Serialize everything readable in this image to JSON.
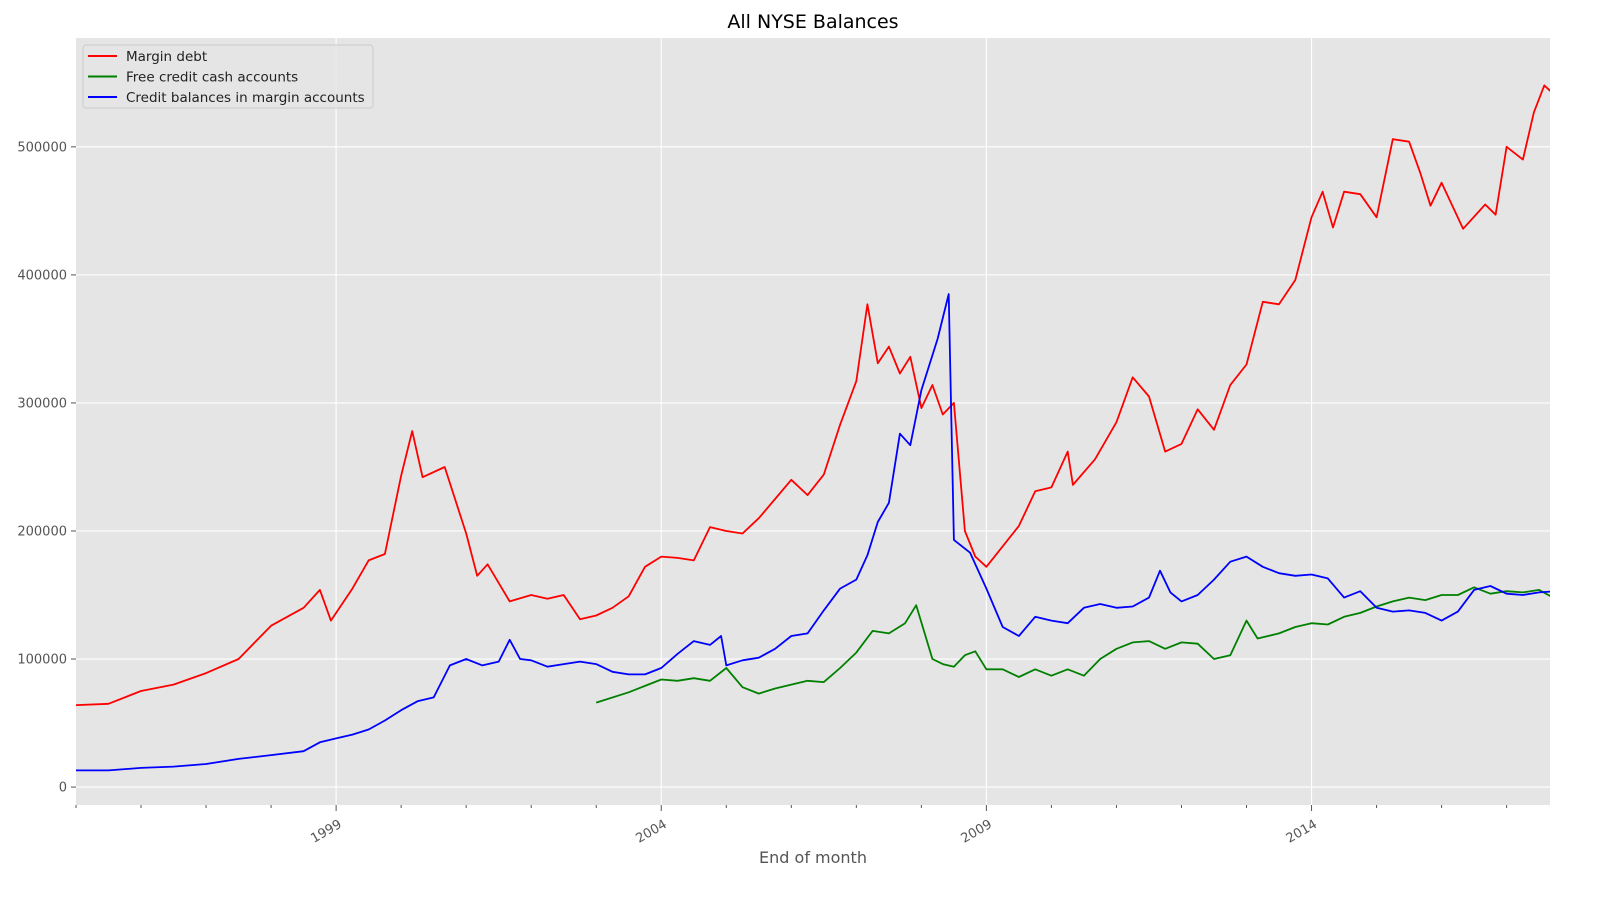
{
  "chart_data": {
    "type": "line",
    "title": "All NYSE Balances",
    "xlabel": "End of month",
    "ylabel": "",
    "xlim": [
      1995.0,
      2017.667
    ],
    "ylim": [
      -14000,
      585000
    ],
    "x_ticks": [
      1999,
      2004,
      2009,
      2014
    ],
    "x_tick_labels": [
      "1999",
      "2004",
      "2009",
      "2014"
    ],
    "y_ticks": [
      0,
      100000,
      200000,
      300000,
      400000,
      500000
    ],
    "y_tick_labels": [
      "0",
      "100000",
      "200000",
      "300000",
      "400000",
      "500000"
    ],
    "grid": true,
    "legend_position": "top-left",
    "series": [
      {
        "name": "Margin debt",
        "color": "#ff0000",
        "points": [
          [
            1995.0,
            64000
          ],
          [
            1995.5,
            65000
          ],
          [
            1996.0,
            75000
          ],
          [
            1996.5,
            80000
          ],
          [
            1997.0,
            89000
          ],
          [
            1997.5,
            100000
          ],
          [
            1998.0,
            126000
          ],
          [
            1998.5,
            140000
          ],
          [
            1998.75,
            154000
          ],
          [
            1998.92,
            130000
          ],
          [
            1999.25,
            155000
          ],
          [
            1999.5,
            177000
          ],
          [
            1999.75,
            182000
          ],
          [
            2000.0,
            243000
          ],
          [
            2000.17,
            278000
          ],
          [
            2000.33,
            242000
          ],
          [
            2000.67,
            250000
          ],
          [
            2001.0,
            198000
          ],
          [
            2001.17,
            165000
          ],
          [
            2001.33,
            174000
          ],
          [
            2001.67,
            145000
          ],
          [
            2002.0,
            150000
          ],
          [
            2002.25,
            147000
          ],
          [
            2002.5,
            150000
          ],
          [
            2002.75,
            131000
          ],
          [
            2003.0,
            134000
          ],
          [
            2003.25,
            140000
          ],
          [
            2003.5,
            149000
          ],
          [
            2003.75,
            172000
          ],
          [
            2004.0,
            180000
          ],
          [
            2004.25,
            179000
          ],
          [
            2004.5,
            177000
          ],
          [
            2004.75,
            203000
          ],
          [
            2005.0,
            200000
          ],
          [
            2005.25,
            198000
          ],
          [
            2005.5,
            210000
          ],
          [
            2005.75,
            225000
          ],
          [
            2006.0,
            240000
          ],
          [
            2006.25,
            228000
          ],
          [
            2006.5,
            244000
          ],
          [
            2006.75,
            283000
          ],
          [
            2007.0,
            317000
          ],
          [
            2007.17,
            377000
          ],
          [
            2007.33,
            331000
          ],
          [
            2007.5,
            344000
          ],
          [
            2007.67,
            323000
          ],
          [
            2007.83,
            336000
          ],
          [
            2008.0,
            296000
          ],
          [
            2008.17,
            314000
          ],
          [
            2008.33,
            291000
          ],
          [
            2008.5,
            300000
          ],
          [
            2008.67,
            200000
          ],
          [
            2008.83,
            180000
          ],
          [
            2009.0,
            172000
          ],
          [
            2009.25,
            188000
          ],
          [
            2009.5,
            204000
          ],
          [
            2009.75,
            231000
          ],
          [
            2010.0,
            234000
          ],
          [
            2010.25,
            262000
          ],
          [
            2010.33,
            236000
          ],
          [
            2010.67,
            256000
          ],
          [
            2011.0,
            285000
          ],
          [
            2011.25,
            320000
          ],
          [
            2011.5,
            305000
          ],
          [
            2011.75,
            262000
          ],
          [
            2012.0,
            268000
          ],
          [
            2012.25,
            295000
          ],
          [
            2012.5,
            279000
          ],
          [
            2012.75,
            314000
          ],
          [
            2013.0,
            330000
          ],
          [
            2013.25,
            379000
          ],
          [
            2013.5,
            377000
          ],
          [
            2013.75,
            396000
          ],
          [
            2014.0,
            445000
          ],
          [
            2014.17,
            465000
          ],
          [
            2014.33,
            437000
          ],
          [
            2014.5,
            465000
          ],
          [
            2014.75,
            463000
          ],
          [
            2015.0,
            445000
          ],
          [
            2015.25,
            506000
          ],
          [
            2015.5,
            504000
          ],
          [
            2015.67,
            480000
          ],
          [
            2015.83,
            454000
          ],
          [
            2016.0,
            472000
          ],
          [
            2016.33,
            436000
          ],
          [
            2016.67,
            455000
          ],
          [
            2016.83,
            447000
          ],
          [
            2017.0,
            500000
          ],
          [
            2017.25,
            490000
          ],
          [
            2017.42,
            527000
          ],
          [
            2017.58,
            548000
          ],
          [
            2017.75,
            540000
          ],
          [
            2018.0,
            550000
          ],
          [
            2018.08,
            559000
          ]
        ]
      },
      {
        "name": "Free credit cash accounts",
        "color": "#008000",
        "points": [
          [
            2003.0,
            66000
          ],
          [
            2003.5,
            74000
          ],
          [
            2003.75,
            79000
          ],
          [
            2004.0,
            84000
          ],
          [
            2004.25,
            83000
          ],
          [
            2004.5,
            85000
          ],
          [
            2004.75,
            83000
          ],
          [
            2005.0,
            93000
          ],
          [
            2005.25,
            78000
          ],
          [
            2005.5,
            73000
          ],
          [
            2005.75,
            77000
          ],
          [
            2006.0,
            80000
          ],
          [
            2006.25,
            83000
          ],
          [
            2006.5,
            82000
          ],
          [
            2006.75,
            93000
          ],
          [
            2007.0,
            105000
          ],
          [
            2007.25,
            122000
          ],
          [
            2007.5,
            120000
          ],
          [
            2007.75,
            128000
          ],
          [
            2007.92,
            142000
          ],
          [
            2008.17,
            100000
          ],
          [
            2008.33,
            96000
          ],
          [
            2008.5,
            94000
          ],
          [
            2008.67,
            103000
          ],
          [
            2008.83,
            106000
          ],
          [
            2009.0,
            92000
          ],
          [
            2009.25,
            92000
          ],
          [
            2009.5,
            86000
          ],
          [
            2009.75,
            92000
          ],
          [
            2010.0,
            87000
          ],
          [
            2010.25,
            92000
          ],
          [
            2010.5,
            87000
          ],
          [
            2010.75,
            100000
          ],
          [
            2011.0,
            108000
          ],
          [
            2011.25,
            113000
          ],
          [
            2011.5,
            114000
          ],
          [
            2011.75,
            108000
          ],
          [
            2012.0,
            113000
          ],
          [
            2012.25,
            112000
          ],
          [
            2012.5,
            100000
          ],
          [
            2012.75,
            103000
          ],
          [
            2013.0,
            130000
          ],
          [
            2013.17,
            116000
          ],
          [
            2013.5,
            120000
          ],
          [
            2013.75,
            125000
          ],
          [
            2014.0,
            128000
          ],
          [
            2014.25,
            127000
          ],
          [
            2014.5,
            133000
          ],
          [
            2014.75,
            136000
          ],
          [
            2015.0,
            141000
          ],
          [
            2015.25,
            145000
          ],
          [
            2015.5,
            148000
          ],
          [
            2015.75,
            146000
          ],
          [
            2016.0,
            150000
          ],
          [
            2016.25,
            150000
          ],
          [
            2016.5,
            156000
          ],
          [
            2016.75,
            151000
          ],
          [
            2017.0,
            153000
          ],
          [
            2017.25,
            152000
          ],
          [
            2017.5,
            154000
          ],
          [
            2017.75,
            147000
          ],
          [
            2018.0,
            141000
          ],
          [
            2018.08,
            143000
          ]
        ]
      },
      {
        "name": "Credit balances in margin accounts",
        "color": "#0000ff",
        "points": [
          [
            1995.0,
            13000
          ],
          [
            1995.5,
            13000
          ],
          [
            1996.0,
            15000
          ],
          [
            1996.5,
            16000
          ],
          [
            1997.0,
            18000
          ],
          [
            1997.5,
            22000
          ],
          [
            1998.0,
            25000
          ],
          [
            1998.5,
            28000
          ],
          [
            1998.75,
            35000
          ],
          [
            1999.0,
            38000
          ],
          [
            1999.25,
            41000
          ],
          [
            1999.5,
            45000
          ],
          [
            1999.75,
            52000
          ],
          [
            2000.0,
            60000
          ],
          [
            2000.25,
            67000
          ],
          [
            2000.5,
            70000
          ],
          [
            2000.75,
            95000
          ],
          [
            2001.0,
            100000
          ],
          [
            2001.25,
            95000
          ],
          [
            2001.5,
            98000
          ],
          [
            2001.67,
            115000
          ],
          [
            2001.83,
            100000
          ],
          [
            2002.0,
            99000
          ],
          [
            2002.25,
            94000
          ],
          [
            2002.5,
            96000
          ],
          [
            2002.75,
            98000
          ],
          [
            2003.0,
            96000
          ],
          [
            2003.25,
            90000
          ],
          [
            2003.5,
            88000
          ],
          [
            2003.75,
            88000
          ],
          [
            2004.0,
            93000
          ],
          [
            2004.25,
            104000
          ],
          [
            2004.5,
            114000
          ],
          [
            2004.75,
            111000
          ],
          [
            2004.92,
            118000
          ],
          [
            2005.0,
            95000
          ],
          [
            2005.25,
            99000
          ],
          [
            2005.5,
            101000
          ],
          [
            2005.75,
            108000
          ],
          [
            2006.0,
            118000
          ],
          [
            2006.25,
            120000
          ],
          [
            2006.5,
            138000
          ],
          [
            2006.75,
            155000
          ],
          [
            2007.0,
            162000
          ],
          [
            2007.17,
            181000
          ],
          [
            2007.33,
            207000
          ],
          [
            2007.5,
            222000
          ],
          [
            2007.67,
            276000
          ],
          [
            2007.83,
            267000
          ],
          [
            2008.0,
            310000
          ],
          [
            2008.25,
            350000
          ],
          [
            2008.42,
            385000
          ],
          [
            2008.5,
            193000
          ],
          [
            2008.75,
            183000
          ],
          [
            2009.0,
            155000
          ],
          [
            2009.25,
            125000
          ],
          [
            2009.5,
            118000
          ],
          [
            2009.75,
            133000
          ],
          [
            2010.0,
            130000
          ],
          [
            2010.25,
            128000
          ],
          [
            2010.5,
            140000
          ],
          [
            2010.75,
            143000
          ],
          [
            2011.0,
            140000
          ],
          [
            2011.25,
            141000
          ],
          [
            2011.5,
            148000
          ],
          [
            2011.67,
            169000
          ],
          [
            2011.83,
            152000
          ],
          [
            2012.0,
            145000
          ],
          [
            2012.25,
            150000
          ],
          [
            2012.5,
            162000
          ],
          [
            2012.75,
            176000
          ],
          [
            2013.0,
            180000
          ],
          [
            2013.25,
            172000
          ],
          [
            2013.5,
            167000
          ],
          [
            2013.75,
            165000
          ],
          [
            2014.0,
            166000
          ],
          [
            2014.25,
            163000
          ],
          [
            2014.5,
            148000
          ],
          [
            2014.75,
            153000
          ],
          [
            2015.0,
            140000
          ],
          [
            2015.25,
            137000
          ],
          [
            2015.5,
            138000
          ],
          [
            2015.75,
            136000
          ],
          [
            2016.0,
            130000
          ],
          [
            2016.25,
            137000
          ],
          [
            2016.5,
            154000
          ],
          [
            2016.75,
            157000
          ],
          [
            2017.0,
            151000
          ],
          [
            2017.25,
            150000
          ],
          [
            2017.5,
            152000
          ],
          [
            2017.75,
            153000
          ],
          [
            2018.0,
            151000
          ],
          [
            2018.08,
            150000
          ]
        ]
      }
    ]
  }
}
